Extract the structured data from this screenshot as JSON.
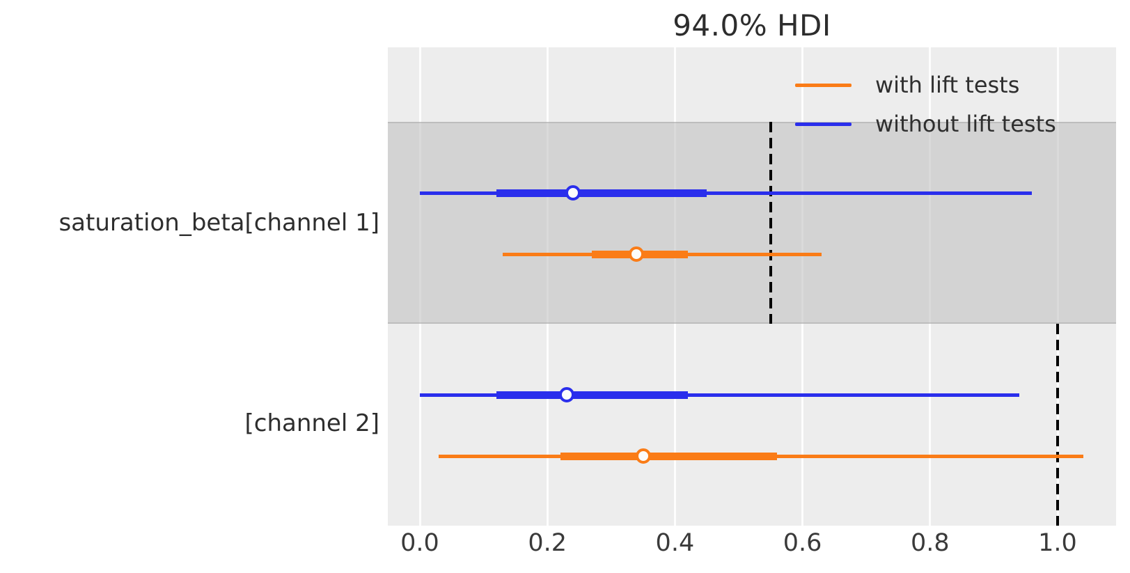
{
  "chart_data": {
    "type": "forest",
    "title": "94.0% HDI",
    "hdi_prob_label": "94.0%",
    "xlabel": "",
    "ylabel": "",
    "xlim": [
      -0.05,
      1.09
    ],
    "x_ticks": [
      0.0,
      0.2,
      0.4,
      0.6,
      0.8,
      1.0
    ],
    "grid": true,
    "legend_position": "upper right",
    "legend": [
      {
        "name": "with lift tests",
        "color": "#fa7c17"
      },
      {
        "name": "without lift tests",
        "color": "#2a2eec"
      }
    ],
    "rows": [
      {
        "label": "saturation_beta[channel 1]",
        "shaded": true,
        "reference_value": 0.55,
        "intervals": [
          {
            "series": "without lift tests",
            "color": "#2a2eec",
            "hdi_lower": 0.0,
            "hdi_upper": 0.96,
            "quartile_lower": 0.12,
            "quartile_upper": 0.45,
            "median": 0.24
          },
          {
            "series": "with lift tests",
            "color": "#fa7c17",
            "hdi_lower": 0.13,
            "hdi_upper": 0.63,
            "quartile_lower": 0.27,
            "quartile_upper": 0.42,
            "median": 0.34
          }
        ]
      },
      {
        "label": "[channel 2]",
        "shaded": false,
        "reference_value": 1.0,
        "intervals": [
          {
            "series": "without lift tests",
            "color": "#2a2eec",
            "hdi_lower": 0.0,
            "hdi_upper": 0.94,
            "quartile_lower": 0.12,
            "quartile_upper": 0.42,
            "median": 0.23
          },
          {
            "series": "with lift tests",
            "color": "#fa7c17",
            "hdi_lower": 0.03,
            "hdi_upper": 1.04,
            "quartile_lower": 0.22,
            "quartile_upper": 0.56,
            "median": 0.35
          }
        ]
      }
    ],
    "colors": {
      "with_lift_tests": "#fa7c17",
      "without_lift_tests": "#2a2eec",
      "plot_background": "#ededed",
      "shaded_band": "#d5d5d5",
      "gridline": "#ffffff",
      "reference_line": "#000000",
      "text": "#2e2e2e"
    }
  }
}
